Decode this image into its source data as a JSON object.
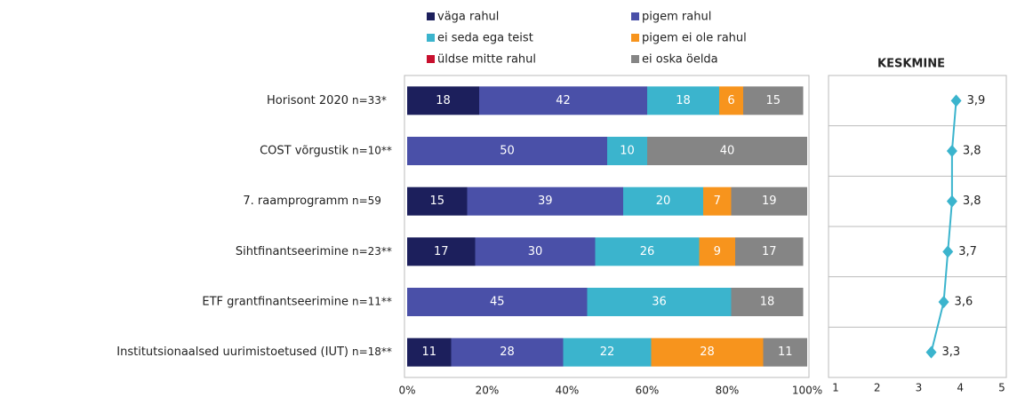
{
  "chart_data": [
    {
      "type": "bar",
      "orientation": "horizontal",
      "stacked": true,
      "categories": [
        "Horisont 2020",
        "COST võrgustik",
        "7. raamprogramm",
        "Sihtfinantseerimine",
        "ETF grantfinantseerimine",
        "Institutsionaalsed uurimistoetused (IUT)"
      ],
      "sample_sizes": [
        "n=33*",
        "n=10**",
        "n=59",
        "n=23**",
        "n=11**",
        "n=18**"
      ],
      "series": [
        {
          "name": "väga rahul",
          "color": "#1c1f5c",
          "values": [
            18,
            null,
            15,
            17,
            null,
            11
          ]
        },
        {
          "name": "pigem rahul",
          "color": "#4a50a8",
          "values": [
            42,
            50,
            39,
            30,
            45,
            28
          ]
        },
        {
          "name": "ei seda ega teist",
          "color": "#3bb4cd",
          "values": [
            18,
            10,
            20,
            26,
            36,
            22
          ]
        },
        {
          "name": "pigem ei ole rahul",
          "color": "#f7941d",
          "values": [
            6,
            null,
            7,
            9,
            null,
            28
          ]
        },
        {
          "name": "üldse mitte rahul",
          "color": "#c8102e",
          "values": [
            null,
            null,
            null,
            null,
            null,
            null
          ]
        },
        {
          "name": "ei oska öelda",
          "color": "#858585",
          "values": [
            15,
            40,
            19,
            17,
            18,
            11
          ]
        }
      ],
      "xlim": [
        0,
        100
      ],
      "xticks": [
        {
          "value": 0,
          "label": "0%"
        },
        {
          "value": 20,
          "label": "20%"
        },
        {
          "value": 40,
          "label": "40%"
        },
        {
          "value": 60,
          "label": "60%"
        },
        {
          "value": 80,
          "label": "80%"
        },
        {
          "value": 100,
          "label": "100%"
        }
      ]
    },
    {
      "type": "line",
      "title": "KESKMINE",
      "color": "#3bb4cd",
      "values": [
        3.9,
        3.8,
        3.8,
        3.7,
        3.6,
        3.3
      ],
      "value_labels": [
        "3,9",
        "3,8",
        "3,8",
        "3,7",
        "3,6",
        "3,3"
      ],
      "xlim": [
        1,
        5
      ],
      "xticks": [
        1,
        2,
        3,
        4,
        5
      ]
    }
  ]
}
